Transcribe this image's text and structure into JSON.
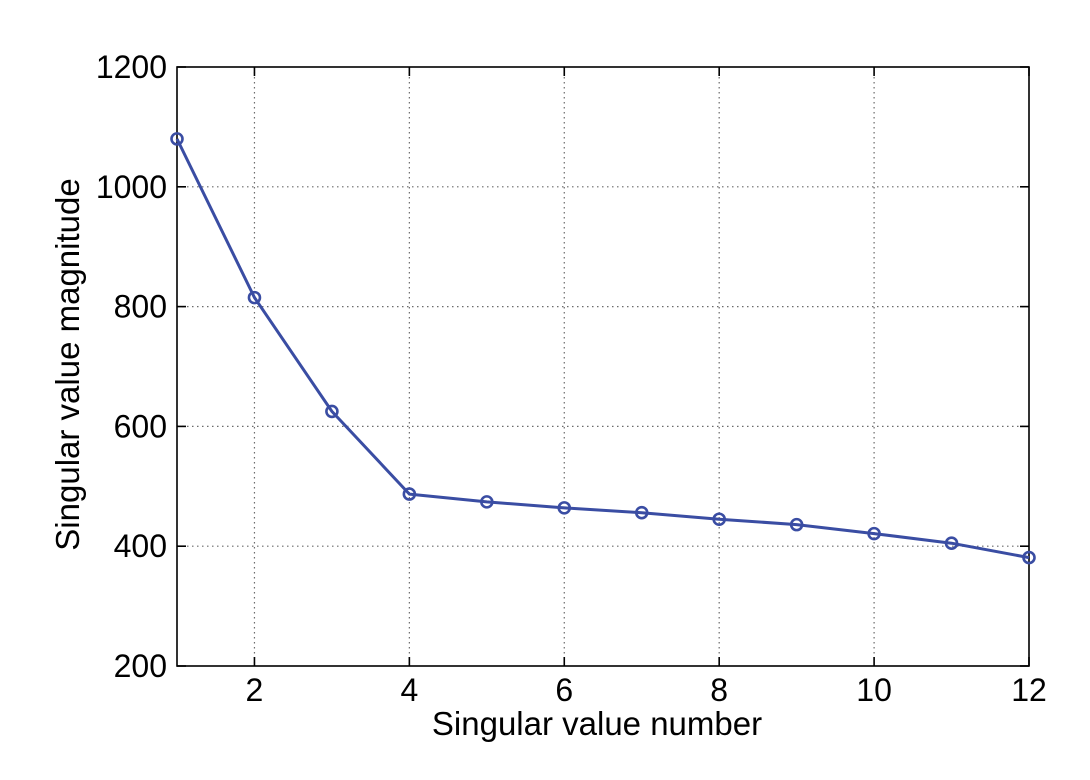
{
  "chart_data": {
    "type": "line",
    "title": "",
    "xlabel": "Singular value number",
    "ylabel": "Singular value magnitude",
    "xlim": [
      1,
      12
    ],
    "ylim": [
      200,
      1200
    ],
    "xticks": [
      2,
      4,
      6,
      8,
      10,
      12
    ],
    "yticks": [
      200,
      400,
      600,
      800,
      1000,
      1200
    ],
    "grid": true,
    "marker": "circle",
    "series_color": "#3a4da3",
    "series": [
      {
        "x": [
          1,
          2,
          3,
          4,
          5,
          6,
          7,
          8,
          9,
          10,
          11,
          12
        ],
        "values": [
          1080,
          815,
          625,
          487,
          474,
          464,
          456,
          445,
          436,
          421,
          405,
          381
        ]
      }
    ]
  }
}
